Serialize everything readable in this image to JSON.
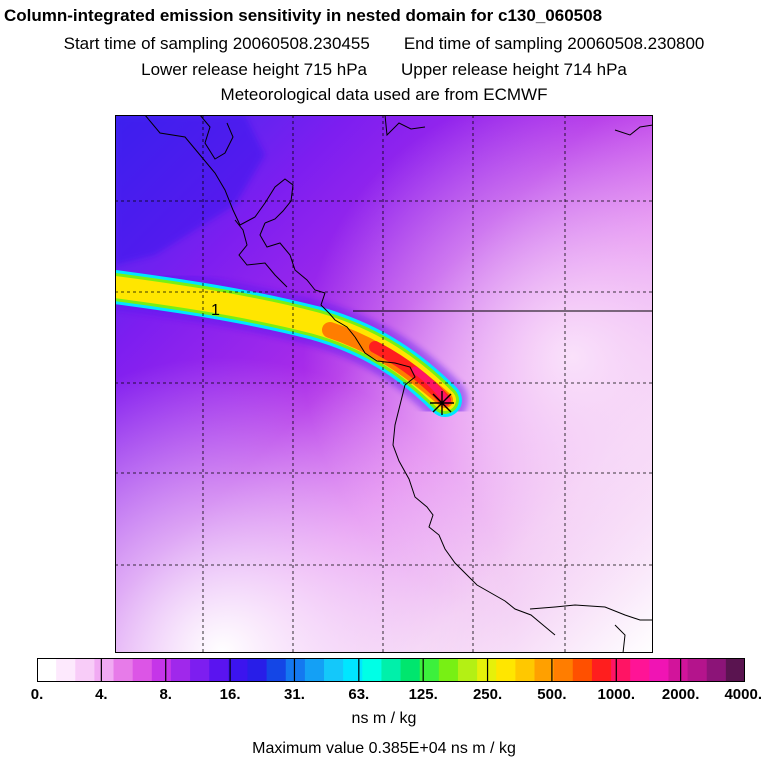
{
  "title": "Column-integrated emission sensitivity in nested domain for c130_060508",
  "sampling": {
    "start_label": "Start time of sampling 20060508.230455",
    "end_label": "End time of sampling 20060508.230800"
  },
  "release": {
    "lower_label": "Lower release height  715 hPa",
    "upper_label": "Upper release height  714 hPa"
  },
  "met_label": "Meteorological data used are from ECMWF",
  "plume_label": "1",
  "colorbar": {
    "tick_labels": [
      "0.",
      "4.",
      "8.",
      "16.",
      "31.",
      "63.",
      "125.",
      "250.",
      "500.",
      "1000.",
      "2000.",
      "4000."
    ],
    "units": "ns m / kg",
    "colors": [
      "#ffffff",
      "#fde9fd",
      "#f8ccf8",
      "#f1aaf3",
      "#e77be9",
      "#dc55e6",
      "#c535e8",
      "#a028eb",
      "#7d1ef0",
      "#5a14f0",
      "#3c14ee",
      "#281ee8",
      "#1446e6",
      "#1478f0",
      "#14a0f5",
      "#14c8fa",
      "#00e6ff",
      "#00ffe6",
      "#00f0aa",
      "#00e66e",
      "#3cf03c",
      "#78f014",
      "#b4f014",
      "#e6f00a",
      "#ffe600",
      "#ffc800",
      "#ffa000",
      "#ff7d00",
      "#ff5000",
      "#ff1e1e",
      "#ff1464",
      "#ff1496",
      "#f014b4",
      "#d2149b",
      "#b4148c",
      "#8c1478",
      "#5a1450"
    ]
  },
  "max_value_label": "Maximum value  0.385E+04 ns m / kg",
  "colors": {
    "plume_edge": "#00e6ff",
    "plume_core": "#ffe600",
    "plume_hot": "#ff1e1e",
    "background_high": "#3c14ee",
    "background_mid": "#c535e8",
    "background_low": "#f8ccf8"
  },
  "icons": {
    "receptor": "asterisk-marker-icon"
  }
}
